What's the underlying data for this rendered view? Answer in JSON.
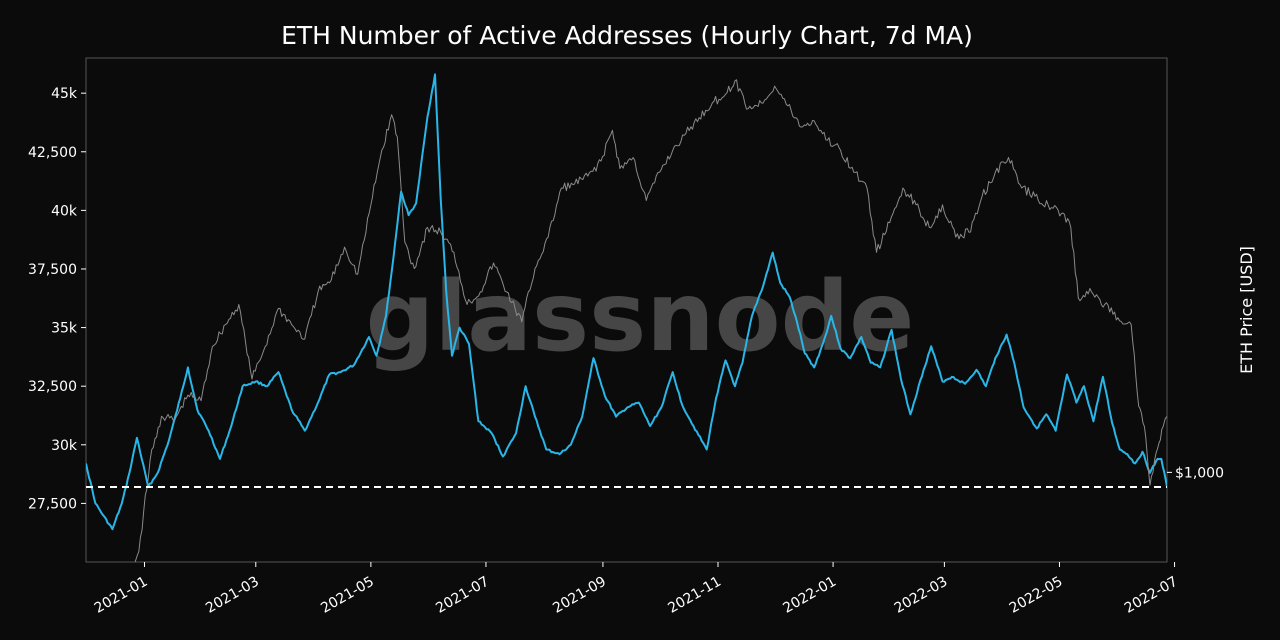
{
  "chart_data": {
    "type": "line",
    "title": "ETH Number of Active Addresses (Hourly Chart, 7d MA)",
    "y_right_label": "ETH Price [USD]",
    "watermark": "glassnode",
    "ylim": [
      25000,
      46500
    ],
    "y_ticks": [
      27500,
      30000,
      32500,
      35000,
      37500,
      40000,
      42500,
      45000
    ],
    "y_tick_labels": [
      "27,500",
      "30k",
      "32,500",
      "35k",
      "37,500",
      "40k",
      "42,500",
      "45k"
    ],
    "y_right_tick": {
      "value": 1000,
      "label": "$1,000"
    },
    "y_right_log_range": [
      700,
      5200
    ],
    "x_range": [
      "2020-12-01",
      "2022-06-27"
    ],
    "x_ticks": [
      "2021-01-01",
      "2021-03-01",
      "2021-05-01",
      "2021-07-01",
      "2021-09-01",
      "2021-11-01",
      "2022-01-01",
      "2022-03-01",
      "2022-05-01",
      "2022-07-01"
    ],
    "x_tick_labels": [
      "2021-01",
      "2021-03",
      "2021-05",
      "2021-07",
      "2021-09",
      "2021-11",
      "2022-01",
      "2022-03",
      "2022-05",
      "2022-07"
    ],
    "reference_line": {
      "value": 28200,
      "style": "dashed",
      "color": "#ffffff"
    },
    "grid": false,
    "series": [
      {
        "role": "active_addresses",
        "color": "#29b6e8",
        "axis": "left",
        "points": [
          [
            "2020-12-01",
            29200
          ],
          [
            "2020-12-06",
            27500
          ],
          [
            "2020-12-10",
            27000
          ],
          [
            "2020-12-15",
            26400
          ],
          [
            "2020-12-20",
            27500
          ],
          [
            "2020-12-24",
            28800
          ],
          [
            "2020-12-28",
            30300
          ],
          [
            "2021-01-03",
            28200
          ],
          [
            "2021-01-08",
            28800
          ],
          [
            "2021-01-14",
            30200
          ],
          [
            "2021-01-20",
            32000
          ],
          [
            "2021-01-24",
            33300
          ],
          [
            "2021-01-29",
            31500
          ],
          [
            "2021-02-04",
            30600
          ],
          [
            "2021-02-10",
            29400
          ],
          [
            "2021-02-16",
            30800
          ],
          [
            "2021-02-22",
            32500
          ],
          [
            "2021-03-01",
            32700
          ],
          [
            "2021-03-07",
            32500
          ],
          [
            "2021-03-13",
            33100
          ],
          [
            "2021-03-20",
            31500
          ],
          [
            "2021-03-27",
            30600
          ],
          [
            "2021-04-03",
            31800
          ],
          [
            "2021-04-09",
            33000
          ],
          [
            "2021-04-15",
            33100
          ],
          [
            "2021-04-22",
            33400
          ],
          [
            "2021-04-30",
            34600
          ],
          [
            "2021-05-04",
            33800
          ],
          [
            "2021-05-09",
            35500
          ],
          [
            "2021-05-13",
            38000
          ],
          [
            "2021-05-17",
            40800
          ],
          [
            "2021-05-21",
            39800
          ],
          [
            "2021-05-25",
            40300
          ],
          [
            "2021-05-31",
            44000
          ],
          [
            "2021-06-04",
            45800
          ],
          [
            "2021-06-07",
            40500
          ],
          [
            "2021-06-10",
            36500
          ],
          [
            "2021-06-13",
            33800
          ],
          [
            "2021-06-17",
            35000
          ],
          [
            "2021-06-22",
            34300
          ],
          [
            "2021-06-27",
            31000
          ],
          [
            "2021-07-04",
            30500
          ],
          [
            "2021-07-10",
            29500
          ],
          [
            "2021-07-17",
            30500
          ],
          [
            "2021-07-22",
            32500
          ],
          [
            "2021-07-27",
            31200
          ],
          [
            "2021-08-02",
            29800
          ],
          [
            "2021-08-09",
            29600
          ],
          [
            "2021-08-15",
            30000
          ],
          [
            "2021-08-21",
            31200
          ],
          [
            "2021-08-27",
            33700
          ],
          [
            "2021-09-02",
            32100
          ],
          [
            "2021-09-08",
            31200
          ],
          [
            "2021-09-14",
            31600
          ],
          [
            "2021-09-20",
            31800
          ],
          [
            "2021-09-26",
            30800
          ],
          [
            "2021-10-02",
            31600
          ],
          [
            "2021-10-08",
            33100
          ],
          [
            "2021-10-13",
            31700
          ],
          [
            "2021-10-19",
            30800
          ],
          [
            "2021-10-26",
            29800
          ],
          [
            "2021-10-31",
            32000
          ],
          [
            "2021-11-05",
            33600
          ],
          [
            "2021-11-10",
            32500
          ],
          [
            "2021-11-14",
            33500
          ],
          [
            "2021-11-19",
            35500
          ],
          [
            "2021-11-25",
            36800
          ],
          [
            "2021-11-30",
            38200
          ],
          [
            "2021-12-04",
            36900
          ],
          [
            "2021-12-09",
            36300
          ],
          [
            "2021-12-13",
            35200
          ],
          [
            "2021-12-17",
            33900
          ],
          [
            "2021-12-22",
            33300
          ],
          [
            "2021-12-27",
            34400
          ],
          [
            "2021-12-31",
            35500
          ],
          [
            "2022-01-05",
            34100
          ],
          [
            "2022-01-10",
            33700
          ],
          [
            "2022-01-16",
            34600
          ],
          [
            "2022-01-21",
            33500
          ],
          [
            "2022-01-26",
            33300
          ],
          [
            "2022-02-01",
            34900
          ],
          [
            "2022-02-06",
            32800
          ],
          [
            "2022-02-11",
            31300
          ],
          [
            "2022-02-18",
            33200
          ],
          [
            "2022-02-22",
            34200
          ],
          [
            "2022-02-28",
            32700
          ],
          [
            "2022-03-05",
            32900
          ],
          [
            "2022-03-12",
            32600
          ],
          [
            "2022-03-18",
            33200
          ],
          [
            "2022-03-23",
            32500
          ],
          [
            "2022-03-28",
            33700
          ],
          [
            "2022-04-03",
            34700
          ],
          [
            "2022-04-07",
            33500
          ],
          [
            "2022-04-12",
            31600
          ],
          [
            "2022-04-19",
            30700
          ],
          [
            "2022-04-24",
            31300
          ],
          [
            "2022-04-29",
            30600
          ],
          [
            "2022-05-05",
            33000
          ],
          [
            "2022-05-10",
            31800
          ],
          [
            "2022-05-14",
            32500
          ],
          [
            "2022-05-19",
            31000
          ],
          [
            "2022-05-24",
            32900
          ],
          [
            "2022-05-29",
            30900
          ],
          [
            "2022-06-02",
            29800
          ],
          [
            "2022-06-06",
            29600
          ],
          [
            "2022-06-10",
            29200
          ],
          [
            "2022-06-14",
            29700
          ],
          [
            "2022-06-18",
            28800
          ],
          [
            "2022-06-22",
            29400
          ],
          [
            "2022-06-24",
            29400
          ],
          [
            "2022-06-27",
            28200
          ]
        ]
      },
      {
        "role": "eth_price",
        "color": "#8a8a8a",
        "axis": "right",
        "scale": "log",
        "points": [
          [
            "2020-12-01",
            595
          ],
          [
            "2020-12-08",
            580
          ],
          [
            "2020-12-15",
            600
          ],
          [
            "2020-12-22",
            630
          ],
          [
            "2020-12-29",
            730
          ],
          [
            "2021-01-04",
            1050
          ],
          [
            "2021-01-10",
            1250
          ],
          [
            "2021-01-17",
            1230
          ],
          [
            "2021-01-24",
            1360
          ],
          [
            "2021-01-31",
            1330
          ],
          [
            "2021-02-06",
            1650
          ],
          [
            "2021-02-13",
            1800
          ],
          [
            "2021-02-20",
            1950
          ],
          [
            "2021-02-27",
            1450
          ],
          [
            "2021-03-06",
            1650
          ],
          [
            "2021-03-13",
            1920
          ],
          [
            "2021-03-20",
            1800
          ],
          [
            "2021-03-27",
            1700
          ],
          [
            "2021-04-03",
            2050
          ],
          [
            "2021-04-10",
            2150
          ],
          [
            "2021-04-17",
            2450
          ],
          [
            "2021-04-24",
            2200
          ],
          [
            "2021-05-01",
            2900
          ],
          [
            "2021-05-06",
            3500
          ],
          [
            "2021-05-12",
            4150
          ],
          [
            "2021-05-15",
            3800
          ],
          [
            "2021-05-19",
            2500
          ],
          [
            "2021-05-24",
            2250
          ],
          [
            "2021-05-31",
            2650
          ],
          [
            "2021-06-07",
            2600
          ],
          [
            "2021-06-14",
            2400
          ],
          [
            "2021-06-21",
            1950
          ],
          [
            "2021-06-28",
            2050
          ],
          [
            "2021-07-05",
            2300
          ],
          [
            "2021-07-12",
            2050
          ],
          [
            "2021-07-20",
            1820
          ],
          [
            "2021-07-27",
            2250
          ],
          [
            "2021-08-03",
            2550
          ],
          [
            "2021-08-10",
            3100
          ],
          [
            "2021-08-17",
            3150
          ],
          [
            "2021-08-24",
            3250
          ],
          [
            "2021-08-31",
            3450
          ],
          [
            "2021-09-06",
            3900
          ],
          [
            "2021-09-10",
            3350
          ],
          [
            "2021-09-17",
            3500
          ],
          [
            "2021-09-24",
            2950
          ],
          [
            "2021-10-01",
            3300
          ],
          [
            "2021-10-08",
            3600
          ],
          [
            "2021-10-15",
            3850
          ],
          [
            "2021-10-22",
            4100
          ],
          [
            "2021-10-29",
            4350
          ],
          [
            "2021-11-05",
            4500
          ],
          [
            "2021-11-10",
            4750
          ],
          [
            "2021-11-17",
            4250
          ],
          [
            "2021-11-24",
            4350
          ],
          [
            "2021-12-01",
            4650
          ],
          [
            "2021-12-08",
            4300
          ],
          [
            "2021-12-15",
            3950
          ],
          [
            "2021-12-22",
            4050
          ],
          [
            "2021-12-29",
            3750
          ],
          [
            "2022-01-05",
            3600
          ],
          [
            "2022-01-12",
            3300
          ],
          [
            "2022-01-19",
            3100
          ],
          [
            "2022-01-24",
            2400
          ],
          [
            "2022-01-31",
            2700
          ],
          [
            "2022-02-07",
            3100
          ],
          [
            "2022-02-14",
            2900
          ],
          [
            "2022-02-21",
            2650
          ],
          [
            "2022-02-28",
            2900
          ],
          [
            "2022-03-07",
            2550
          ],
          [
            "2022-03-14",
            2600
          ],
          [
            "2022-03-21",
            3000
          ],
          [
            "2022-03-28",
            3300
          ],
          [
            "2022-04-04",
            3500
          ],
          [
            "2022-04-11",
            3100
          ],
          [
            "2022-04-18",
            3000
          ],
          [
            "2022-04-25",
            2900
          ],
          [
            "2022-05-02",
            2800
          ],
          [
            "2022-05-07",
            2650
          ],
          [
            "2022-05-11",
            2000
          ],
          [
            "2022-05-18",
            2050
          ],
          [
            "2022-05-25",
            1950
          ],
          [
            "2022-06-01",
            1850
          ],
          [
            "2022-06-08",
            1800
          ],
          [
            "2022-06-12",
            1300
          ],
          [
            "2022-06-15",
            1200
          ],
          [
            "2022-06-18",
            950
          ],
          [
            "2022-06-22",
            1100
          ],
          [
            "2022-06-25",
            1200
          ],
          [
            "2022-06-27",
            1250
          ]
        ]
      }
    ]
  }
}
